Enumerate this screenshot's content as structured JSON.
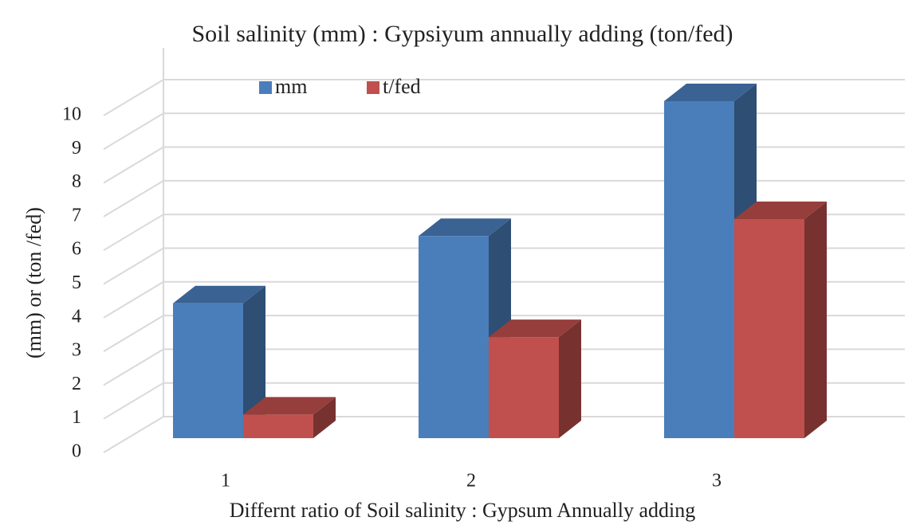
{
  "chart_data": {
    "type": "bar3d",
    "title": "Soil salinity (mm) : Gypsiyum annually adding (ton/fed)",
    "x_label": "Differnt ratio of Soil salinity : Gypsum Annually adding",
    "y_label": "(mm) or (ton /fed)",
    "categories": [
      "1",
      "2",
      "3"
    ],
    "series": [
      {
        "name": "mm",
        "color": "#4a7ebb",
        "values": [
          4,
          6,
          10
        ]
      },
      {
        "name": "t/fed",
        "color": "#c0504d",
        "values": [
          0.7,
          3,
          6.5
        ]
      }
    ],
    "ylim": [
      0,
      10
    ],
    "yticks": [
      0,
      1,
      2,
      3,
      4,
      5,
      6,
      7,
      8,
      9,
      10
    ],
    "grid": true,
    "legend": "top"
  }
}
